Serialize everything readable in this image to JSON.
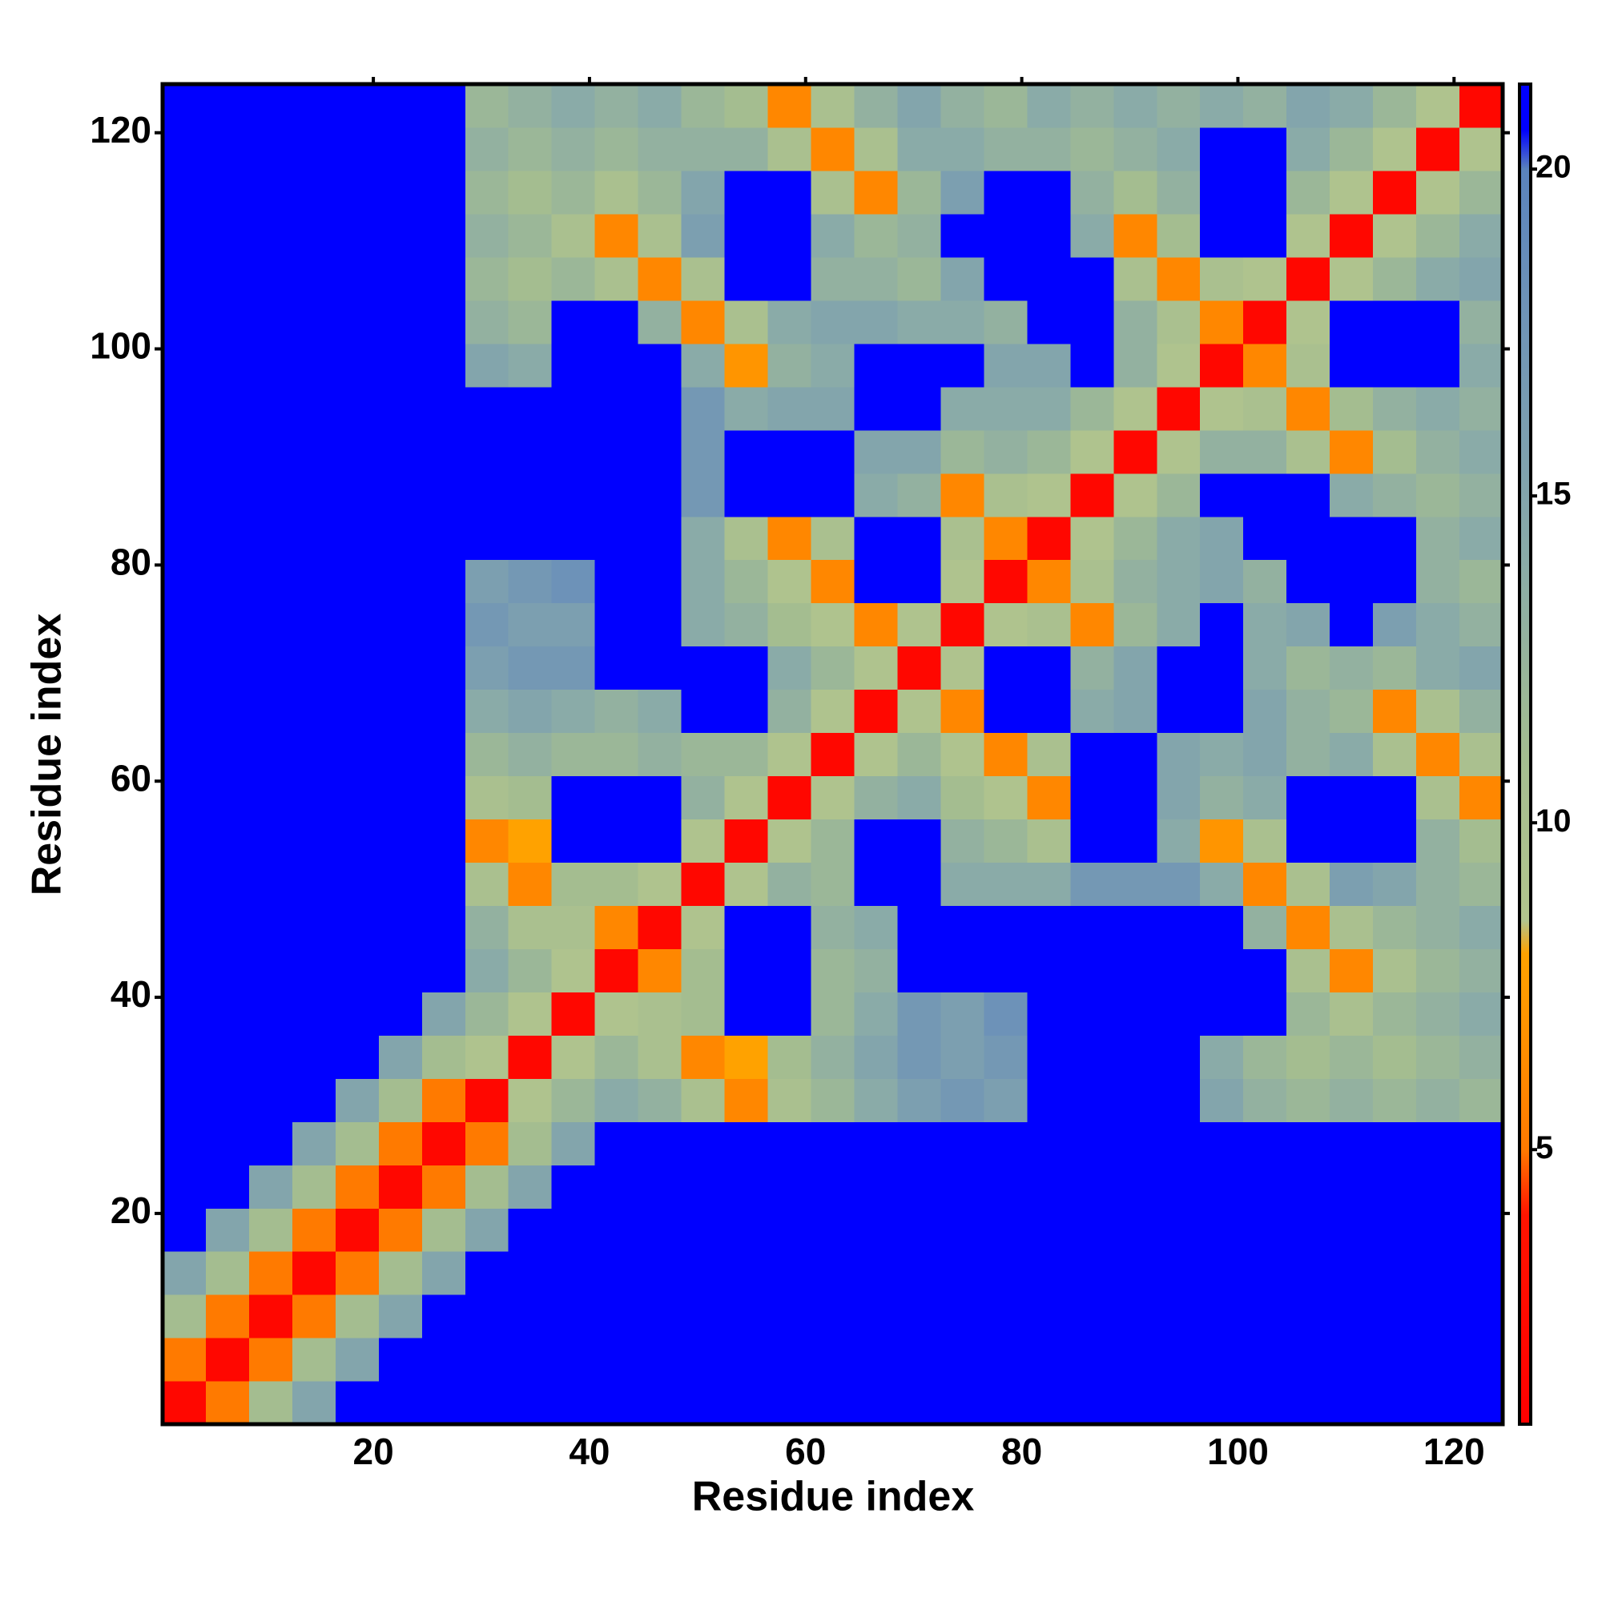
{
  "chart_data": {
    "type": "heatmap",
    "xlabel": "Residue index",
    "ylabel": "Residue index",
    "x": [
      2.5,
      6.5,
      10.5,
      14.5,
      18.5,
      22.5,
      26.5,
      30.5,
      34.5,
      38.5,
      42.5,
      46.5,
      50.5,
      54.5,
      58.5,
      62.5,
      66.5,
      70.5,
      74.5,
      78.5,
      82.5,
      86.5,
      90.5,
      94.5,
      98.5,
      102.5,
      106.5,
      110.5,
      114.5,
      118.5,
      122.5
    ],
    "y": [
      2.5,
      6.5,
      10.5,
      14.5,
      18.5,
      22.5,
      26.5,
      30.5,
      34.5,
      38.5,
      42.5,
      46.5,
      50.5,
      54.5,
      58.5,
      62.5,
      66.5,
      70.5,
      74.5,
      78.5,
      82.5,
      86.5,
      90.5,
      94.5,
      98.5,
      102.5,
      106.5,
      110.5,
      114.5,
      118.5,
      122.5
    ],
    "values": [
      [
        2,
        5,
        11,
        15,
        21,
        21,
        21,
        21,
        21,
        21,
        21,
        21,
        21,
        21,
        21,
        21,
        21,
        21,
        21,
        21,
        21,
        21,
        21,
        21,
        21,
        21,
        21,
        21,
        21,
        21,
        21
      ],
      [
        5,
        2,
        5,
        11,
        15,
        21,
        21,
        21,
        21,
        21,
        21,
        21,
        21,
        21,
        21,
        21,
        21,
        21,
        21,
        21,
        21,
        21,
        21,
        21,
        21,
        21,
        21,
        21,
        21,
        21,
        21
      ],
      [
        11,
        5,
        2,
        5,
        11,
        15,
        21,
        21,
        21,
        21,
        21,
        21,
        21,
        21,
        21,
        21,
        21,
        21,
        21,
        21,
        21,
        21,
        21,
        21,
        21,
        21,
        21,
        21,
        21,
        21,
        21
      ],
      [
        15,
        11,
        5,
        2,
        5,
        11,
        15,
        21,
        21,
        21,
        21,
        21,
        21,
        21,
        21,
        21,
        21,
        21,
        21,
        21,
        21,
        21,
        21,
        21,
        21,
        21,
        21,
        21,
        21,
        21,
        21
      ],
      [
        21,
        15,
        11,
        5,
        2,
        5,
        11,
        15,
        21,
        21,
        21,
        21,
        21,
        21,
        21,
        21,
        21,
        21,
        21,
        21,
        21,
        21,
        21,
        21,
        21,
        21,
        21,
        21,
        21,
        21,
        21
      ],
      [
        21,
        21,
        15,
        11,
        5,
        2,
        5,
        11,
        15,
        21,
        21,
        21,
        21,
        21,
        21,
        21,
        21,
        21,
        21,
        21,
        21,
        21,
        21,
        21,
        21,
        21,
        21,
        21,
        21,
        21,
        21
      ],
      [
        21,
        21,
        21,
        15,
        11,
        5,
        2,
        5,
        11,
        15,
        21,
        21,
        21,
        21,
        21,
        21,
        21,
        21,
        21,
        21,
        21,
        21,
        21,
        21,
        21,
        21,
        21,
        21,
        21,
        21,
        21
      ],
      [
        21,
        21,
        21,
        21,
        15,
        11,
        5,
        2,
        9,
        12,
        14,
        13,
        10,
        6,
        10,
        12,
        14,
        16,
        17,
        16,
        21,
        21,
        21,
        21,
        15,
        13,
        12,
        13,
        12,
        13,
        12
      ],
      [
        21,
        21,
        21,
        21,
        21,
        15,
        11,
        9,
        2,
        9,
        12,
        10,
        6,
        8,
        11,
        13,
        15,
        17,
        16,
        17,
        21,
        21,
        21,
        21,
        14,
        12,
        11,
        12,
        11,
        12,
        13
      ],
      [
        21,
        21,
        21,
        21,
        21,
        21,
        15,
        12,
        9,
        2,
        9,
        10,
        11,
        21,
        21,
        12,
        14,
        17,
        16,
        18,
        21,
        21,
        21,
        21,
        21,
        21,
        12,
        10,
        12,
        13,
        14
      ],
      [
        21,
        21,
        21,
        21,
        21,
        21,
        21,
        14,
        12,
        9,
        2,
        6,
        11,
        21,
        21,
        12,
        13,
        21,
        21,
        21,
        21,
        21,
        21,
        21,
        21,
        21,
        10,
        6,
        10,
        12,
        13
      ],
      [
        21,
        21,
        21,
        21,
        21,
        21,
        21,
        13,
        10,
        10,
        6,
        2,
        9,
        21,
        21,
        13,
        14,
        21,
        21,
        21,
        21,
        21,
        21,
        21,
        21,
        13,
        6,
        10,
        12,
        13,
        14
      ],
      [
        21,
        21,
        21,
        21,
        21,
        21,
        21,
        10,
        6,
        11,
        11,
        9,
        2,
        9,
        13,
        12,
        21,
        21,
        14,
        14,
        14,
        17,
        17,
        17,
        14,
        6,
        10,
        16,
        15,
        13,
        12
      ],
      [
        21,
        21,
        21,
        21,
        21,
        21,
        21,
        6,
        8,
        21,
        21,
        21,
        9,
        2,
        9,
        12,
        21,
        21,
        13,
        12,
        10,
        21,
        21,
        14,
        7,
        10,
        21,
        21,
        21,
        13,
        11
      ],
      [
        21,
        21,
        21,
        21,
        21,
        21,
        21,
        10,
        11,
        21,
        21,
        21,
        13,
        9,
        2,
        9,
        13,
        14,
        11,
        9,
        6,
        21,
        21,
        15,
        13,
        14,
        21,
        21,
        21,
        10,
        6
      ],
      [
        21,
        21,
        21,
        21,
        21,
        21,
        21,
        12,
        13,
        12,
        12,
        13,
        12,
        12,
        9,
        2,
        9,
        12,
        9,
        6,
        10,
        21,
        21,
        15,
        14,
        15,
        13,
        14,
        10,
        6,
        10
      ],
      [
        21,
        21,
        21,
        21,
        21,
        21,
        21,
        14,
        15,
        14,
        13,
        14,
        21,
        21,
        13,
        9,
        2,
        9,
        6,
        21,
        21,
        14,
        15,
        21,
        21,
        15,
        13,
        12,
        6,
        10,
        13
      ],
      [
        21,
        21,
        21,
        21,
        21,
        21,
        21,
        16,
        17,
        17,
        21,
        21,
        21,
        21,
        14,
        12,
        9,
        2,
        9,
        21,
        21,
        13,
        15,
        21,
        21,
        14,
        12,
        13,
        12,
        14,
        15
      ],
      [
        21,
        21,
        21,
        21,
        21,
        21,
        21,
        17,
        16,
        16,
        21,
        21,
        14,
        13,
        11,
        9,
        6,
        9,
        2,
        9,
        10,
        6,
        12,
        14,
        21,
        14,
        15,
        21,
        16,
        14,
        13
      ],
      [
        21,
        21,
        21,
        21,
        21,
        21,
        21,
        16,
        17,
        18,
        21,
        21,
        14,
        12,
        9,
        6,
        21,
        21,
        9,
        2,
        6,
        10,
        13,
        14,
        15,
        13,
        21,
        21,
        21,
        13,
        12
      ],
      [
        21,
        21,
        21,
        21,
        21,
        21,
        21,
        21,
        21,
        21,
        21,
        21,
        14,
        10,
        6,
        10,
        21,
        21,
        10,
        6,
        2,
        9,
        12,
        14,
        15,
        21,
        21,
        21,
        21,
        13,
        14
      ],
      [
        21,
        21,
        21,
        21,
        21,
        21,
        21,
        21,
        21,
        21,
        21,
        21,
        17,
        21,
        21,
        21,
        14,
        13,
        6,
        10,
        9,
        2,
        9,
        12,
        21,
        21,
        21,
        14,
        13,
        12,
        13
      ],
      [
        21,
        21,
        21,
        21,
        21,
        21,
        21,
        21,
        21,
        21,
        21,
        21,
        17,
        21,
        21,
        21,
        15,
        15,
        12,
        13,
        12,
        9,
        2,
        9,
        13,
        13,
        10,
        6,
        11,
        13,
        14
      ],
      [
        21,
        21,
        21,
        21,
        21,
        21,
        21,
        21,
        21,
        21,
        21,
        21,
        17,
        14,
        15,
        15,
        21,
        21,
        14,
        14,
        14,
        12,
        9,
        2,
        9,
        10,
        6,
        11,
        13,
        14,
        13
      ],
      [
        21,
        21,
        21,
        21,
        21,
        21,
        21,
        15,
        14,
        21,
        21,
        21,
        14,
        7,
        13,
        14,
        21,
        21,
        21,
        15,
        15,
        21,
        13,
        9,
        2,
        6,
        10,
        21,
        21,
        21,
        14
      ],
      [
        21,
        21,
        21,
        21,
        21,
        21,
        21,
        13,
        12,
        21,
        21,
        13,
        6,
        10,
        14,
        15,
        15,
        14,
        14,
        13,
        21,
        21,
        13,
        10,
        6,
        2,
        9,
        21,
        21,
        21,
        13
      ],
      [
        21,
        21,
        21,
        21,
        21,
        21,
        21,
        12,
        11,
        12,
        10,
        6,
        10,
        21,
        21,
        13,
        13,
        12,
        15,
        21,
        21,
        21,
        10,
        6,
        10,
        9,
        2,
        9,
        12,
        14,
        15
      ],
      [
        21,
        21,
        21,
        21,
        21,
        21,
        21,
        13,
        12,
        10,
        6,
        10,
        16,
        21,
        21,
        14,
        12,
        13,
        21,
        21,
        21,
        14,
        6,
        11,
        21,
        21,
        9,
        2,
        9,
        12,
        14
      ],
      [
        21,
        21,
        21,
        21,
        21,
        21,
        21,
        12,
        11,
        12,
        10,
        12,
        15,
        21,
        21,
        10,
        6,
        12,
        16,
        21,
        21,
        13,
        11,
        13,
        21,
        21,
        12,
        9,
        2,
        9,
        12
      ],
      [
        21,
        21,
        21,
        21,
        21,
        21,
        21,
        13,
        12,
        13,
        12,
        13,
        13,
        13,
        10,
        6,
        10,
        14,
        14,
        13,
        13,
        12,
        13,
        14,
        21,
        21,
        14,
        12,
        9,
        2,
        9
      ],
      [
        21,
        21,
        21,
        21,
        21,
        21,
        21,
        12,
        13,
        14,
        13,
        14,
        12,
        11,
        6,
        10,
        13,
        15,
        13,
        12,
        14,
        13,
        14,
        13,
        14,
        13,
        15,
        14,
        12,
        9,
        2
      ]
    ],
    "xlim": [
      0.5,
      124.5
    ],
    "ylim": [
      0.5,
      124.5
    ],
    "xticks": [
      20,
      40,
      60,
      80,
      100,
      120
    ],
    "yticks": [
      20,
      40,
      60,
      80,
      100,
      120
    ],
    "colorbar": {
      "lim": [
        0.8,
        21.3
      ],
      "ticks": [
        5,
        10,
        15,
        20
      ]
    },
    "colorscale": [
      {
        "value": 0.8,
        "color": "#ff0000"
      },
      {
        "value": 4,
        "color": "#ff1400"
      },
      {
        "value": 5,
        "color": "#ff7a00"
      },
      {
        "value": 8,
        "color": "#ffa200"
      },
      {
        "value": 8.5,
        "color": "#b2c48e"
      },
      {
        "value": 11,
        "color": "#a4bd90"
      },
      {
        "value": 14,
        "color": "#8aaba8"
      },
      {
        "value": 18,
        "color": "#6d92b8"
      },
      {
        "value": 20,
        "color": "#5a83bd"
      },
      {
        "value": 20.6,
        "color": "#0000ff"
      },
      {
        "value": 21.3,
        "color": "#0000ff"
      }
    ]
  }
}
